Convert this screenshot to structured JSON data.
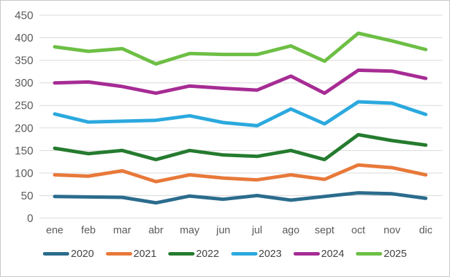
{
  "chart_data": {
    "type": "line",
    "title": "",
    "xlabel": "",
    "ylabel": "",
    "categories": [
      "ene",
      "feb",
      "mar",
      "abr",
      "may",
      "jun",
      "jul",
      "ago",
      "sept",
      "oct",
      "nov",
      "dic"
    ],
    "series": [
      {
        "name": "2020",
        "color": "#2b6c8d",
        "values": [
          48,
          47,
          46,
          34,
          49,
          42,
          50,
          40,
          48,
          56,
          54,
          44
        ]
      },
      {
        "name": "2021",
        "color": "#e8793a",
        "values": [
          96,
          93,
          105,
          81,
          96,
          89,
          85,
          96,
          86,
          118,
          112,
          96
        ]
      },
      {
        "name": "2022",
        "color": "#257b2f",
        "values": [
          155,
          143,
          150,
          130,
          150,
          140,
          137,
          150,
          130,
          185,
          172,
          162
        ]
      },
      {
        "name": "2023",
        "color": "#2ba9de",
        "values": [
          231,
          213,
          215,
          217,
          227,
          212,
          205,
          242,
          209,
          258,
          255,
          230
        ]
      },
      {
        "name": "2024",
        "color": "#a62c94",
        "values": [
          300,
          302,
          292,
          277,
          293,
          288,
          284,
          315,
          277,
          328,
          326,
          310
        ]
      },
      {
        "name": "2025",
        "color": "#6dbf45",
        "values": [
          380,
          370,
          376,
          342,
          365,
          363,
          363,
          382,
          348,
          410,
          393,
          374
        ]
      }
    ],
    "ylim": [
      0,
      450
    ],
    "y_ticks": [
      0,
      50,
      100,
      150,
      200,
      250,
      300,
      350,
      400,
      450
    ],
    "grid": true,
    "legend_position": "bottom",
    "line_width": 5,
    "colors": {
      "grid": "#d9d9d9",
      "axis_text": "#595959",
      "legend_text": "#404040",
      "background": "#ffffff",
      "border": "#c6c6c6"
    }
  }
}
